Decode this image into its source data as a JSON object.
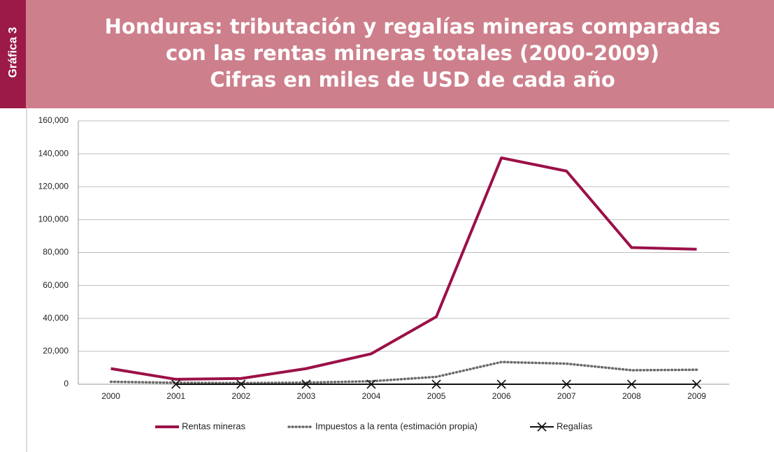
{
  "badge": "Gráfica 3",
  "chart_data": {
    "type": "line",
    "title": [
      "Honduras: tributación y regalías mineras comparadas",
      "con las rentas mineras totales (2000-2009)"
    ],
    "subtitle": "Cifras en miles de USD de cada año",
    "categories": [
      "2000",
      "2001",
      "2002",
      "2003",
      "2004",
      "2005",
      "2006",
      "2007",
      "2008",
      "2009"
    ],
    "series": [
      {
        "name": "Rentas mineras",
        "color": "#9b1048",
        "style": "solid",
        "values": [
          9500,
          3000,
          3500,
          9500,
          18500,
          41000,
          137500,
          129500,
          83000,
          82000
        ]
      },
      {
        "name": "Impuestos a la renta (estimación propia)",
        "color": "#6b6b6b",
        "style": "dotted",
        "values": [
          1500,
          900,
          700,
          1000,
          1800,
          4500,
          13500,
          12500,
          8500,
          8800
        ]
      },
      {
        "name": "Regalías",
        "color": "#111111",
        "style": "cross",
        "values": [
          null,
          0,
          0,
          0,
          0,
          0,
          0,
          0,
          0,
          0
        ]
      }
    ],
    "ylim": [
      0,
      160000
    ],
    "yticks": [
      0,
      {
        "value": 20000,
        "label": "20,000"
      },
      {
        "value": 40000,
        "label": "40,000"
      },
      {
        "value": 60000,
        "label": "60,000"
      },
      {
        "value": 80000,
        "label": "80,000"
      },
      {
        "value": 100000,
        "label": "100,000"
      },
      {
        "value": 120000,
        "label": "120,000"
      },
      {
        "value": 140000,
        "label": "140,000"
      },
      {
        "value": 160000,
        "label": "160,000"
      }
    ],
    "grid": true,
    "legend": "bottom"
  }
}
